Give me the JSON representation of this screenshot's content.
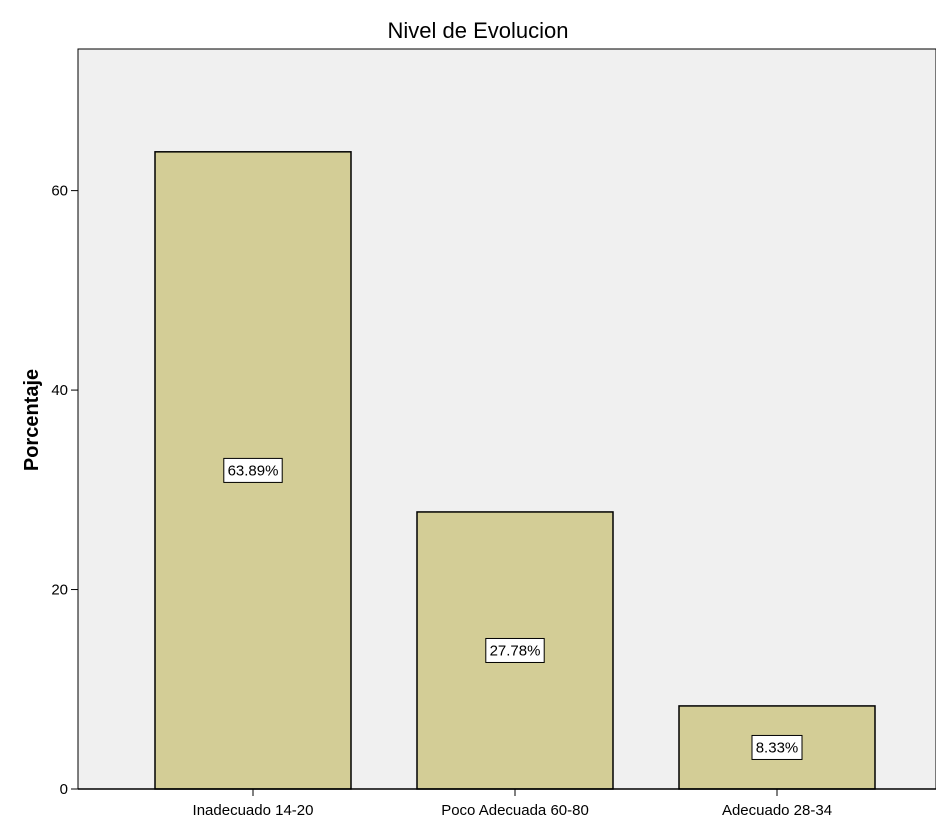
{
  "chart_data": {
    "type": "bar",
    "title": "Nivel de Evolucion",
    "xlabel": "",
    "ylabel": "Porcentaje",
    "categories": [
      "Inadecuado 14-20",
      "Poco Adecuada 60-80",
      "Adecuado 28-34"
    ],
    "values": [
      63.89,
      27.78,
      8.33
    ],
    "data_labels": [
      "63.89%",
      "27.78%",
      "8.33%"
    ],
    "y_ticks": [
      0,
      20,
      40,
      60
    ],
    "ylim": [
      0,
      74.2
    ],
    "grid": false,
    "legend": "none",
    "colors": {
      "bar_fill": "#d3cd96",
      "bar_stroke": "#000000",
      "plot_background": "#f0f0f0",
      "label_box": "#ffffff"
    }
  }
}
